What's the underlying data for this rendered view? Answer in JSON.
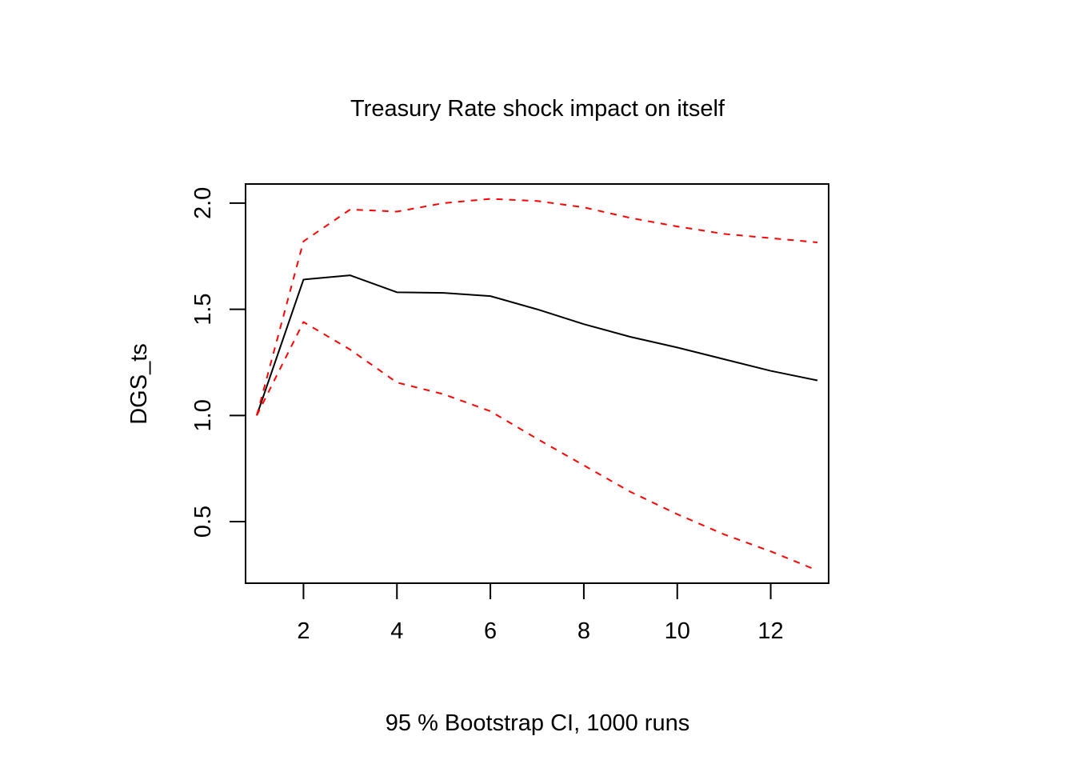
{
  "chart_data": {
    "type": "line",
    "title": "Treasury Rate shock impact on itself",
    "xlabel": "95 % Bootstrap CI,  1000 runs",
    "ylabel": "DGS_ts",
    "xlim": [
      0.76,
      13.24
    ],
    "ylim": [
      0.21,
      2.09
    ],
    "xticks": [
      2,
      4,
      6,
      8,
      10,
      12
    ],
    "yticks": [
      0.5,
      1.0,
      1.5,
      2.0
    ],
    "xtick_labels": [
      "2",
      "4",
      "6",
      "8",
      "10",
      "12"
    ],
    "ytick_labels": [
      "0.5",
      "1.0",
      "1.5",
      "2.0"
    ],
    "grid": false,
    "x": [
      1,
      2,
      3,
      4,
      5,
      6,
      7,
      8,
      9,
      10,
      11,
      12,
      13
    ],
    "series": [
      {
        "values": [
          1.0,
          1.64,
          1.66,
          1.58,
          1.577,
          1.562,
          1.5,
          1.43,
          1.37,
          1.32,
          1.265,
          1.21,
          1.165
        ],
        "color": "#000000",
        "style": "solid"
      },
      {
        "values": [
          1.0,
          1.82,
          1.97,
          1.96,
          2.0,
          2.02,
          2.01,
          1.98,
          1.93,
          1.89,
          1.855,
          1.835,
          1.815
        ],
        "color": "#ff0000",
        "style": "dashed"
      },
      {
        "values": [
          1.0,
          1.44,
          1.31,
          1.155,
          1.1,
          1.02,
          0.89,
          0.765,
          0.64,
          0.535,
          0.44,
          0.36,
          0.27
        ],
        "color": "#ff0000",
        "style": "dashed"
      }
    ]
  }
}
